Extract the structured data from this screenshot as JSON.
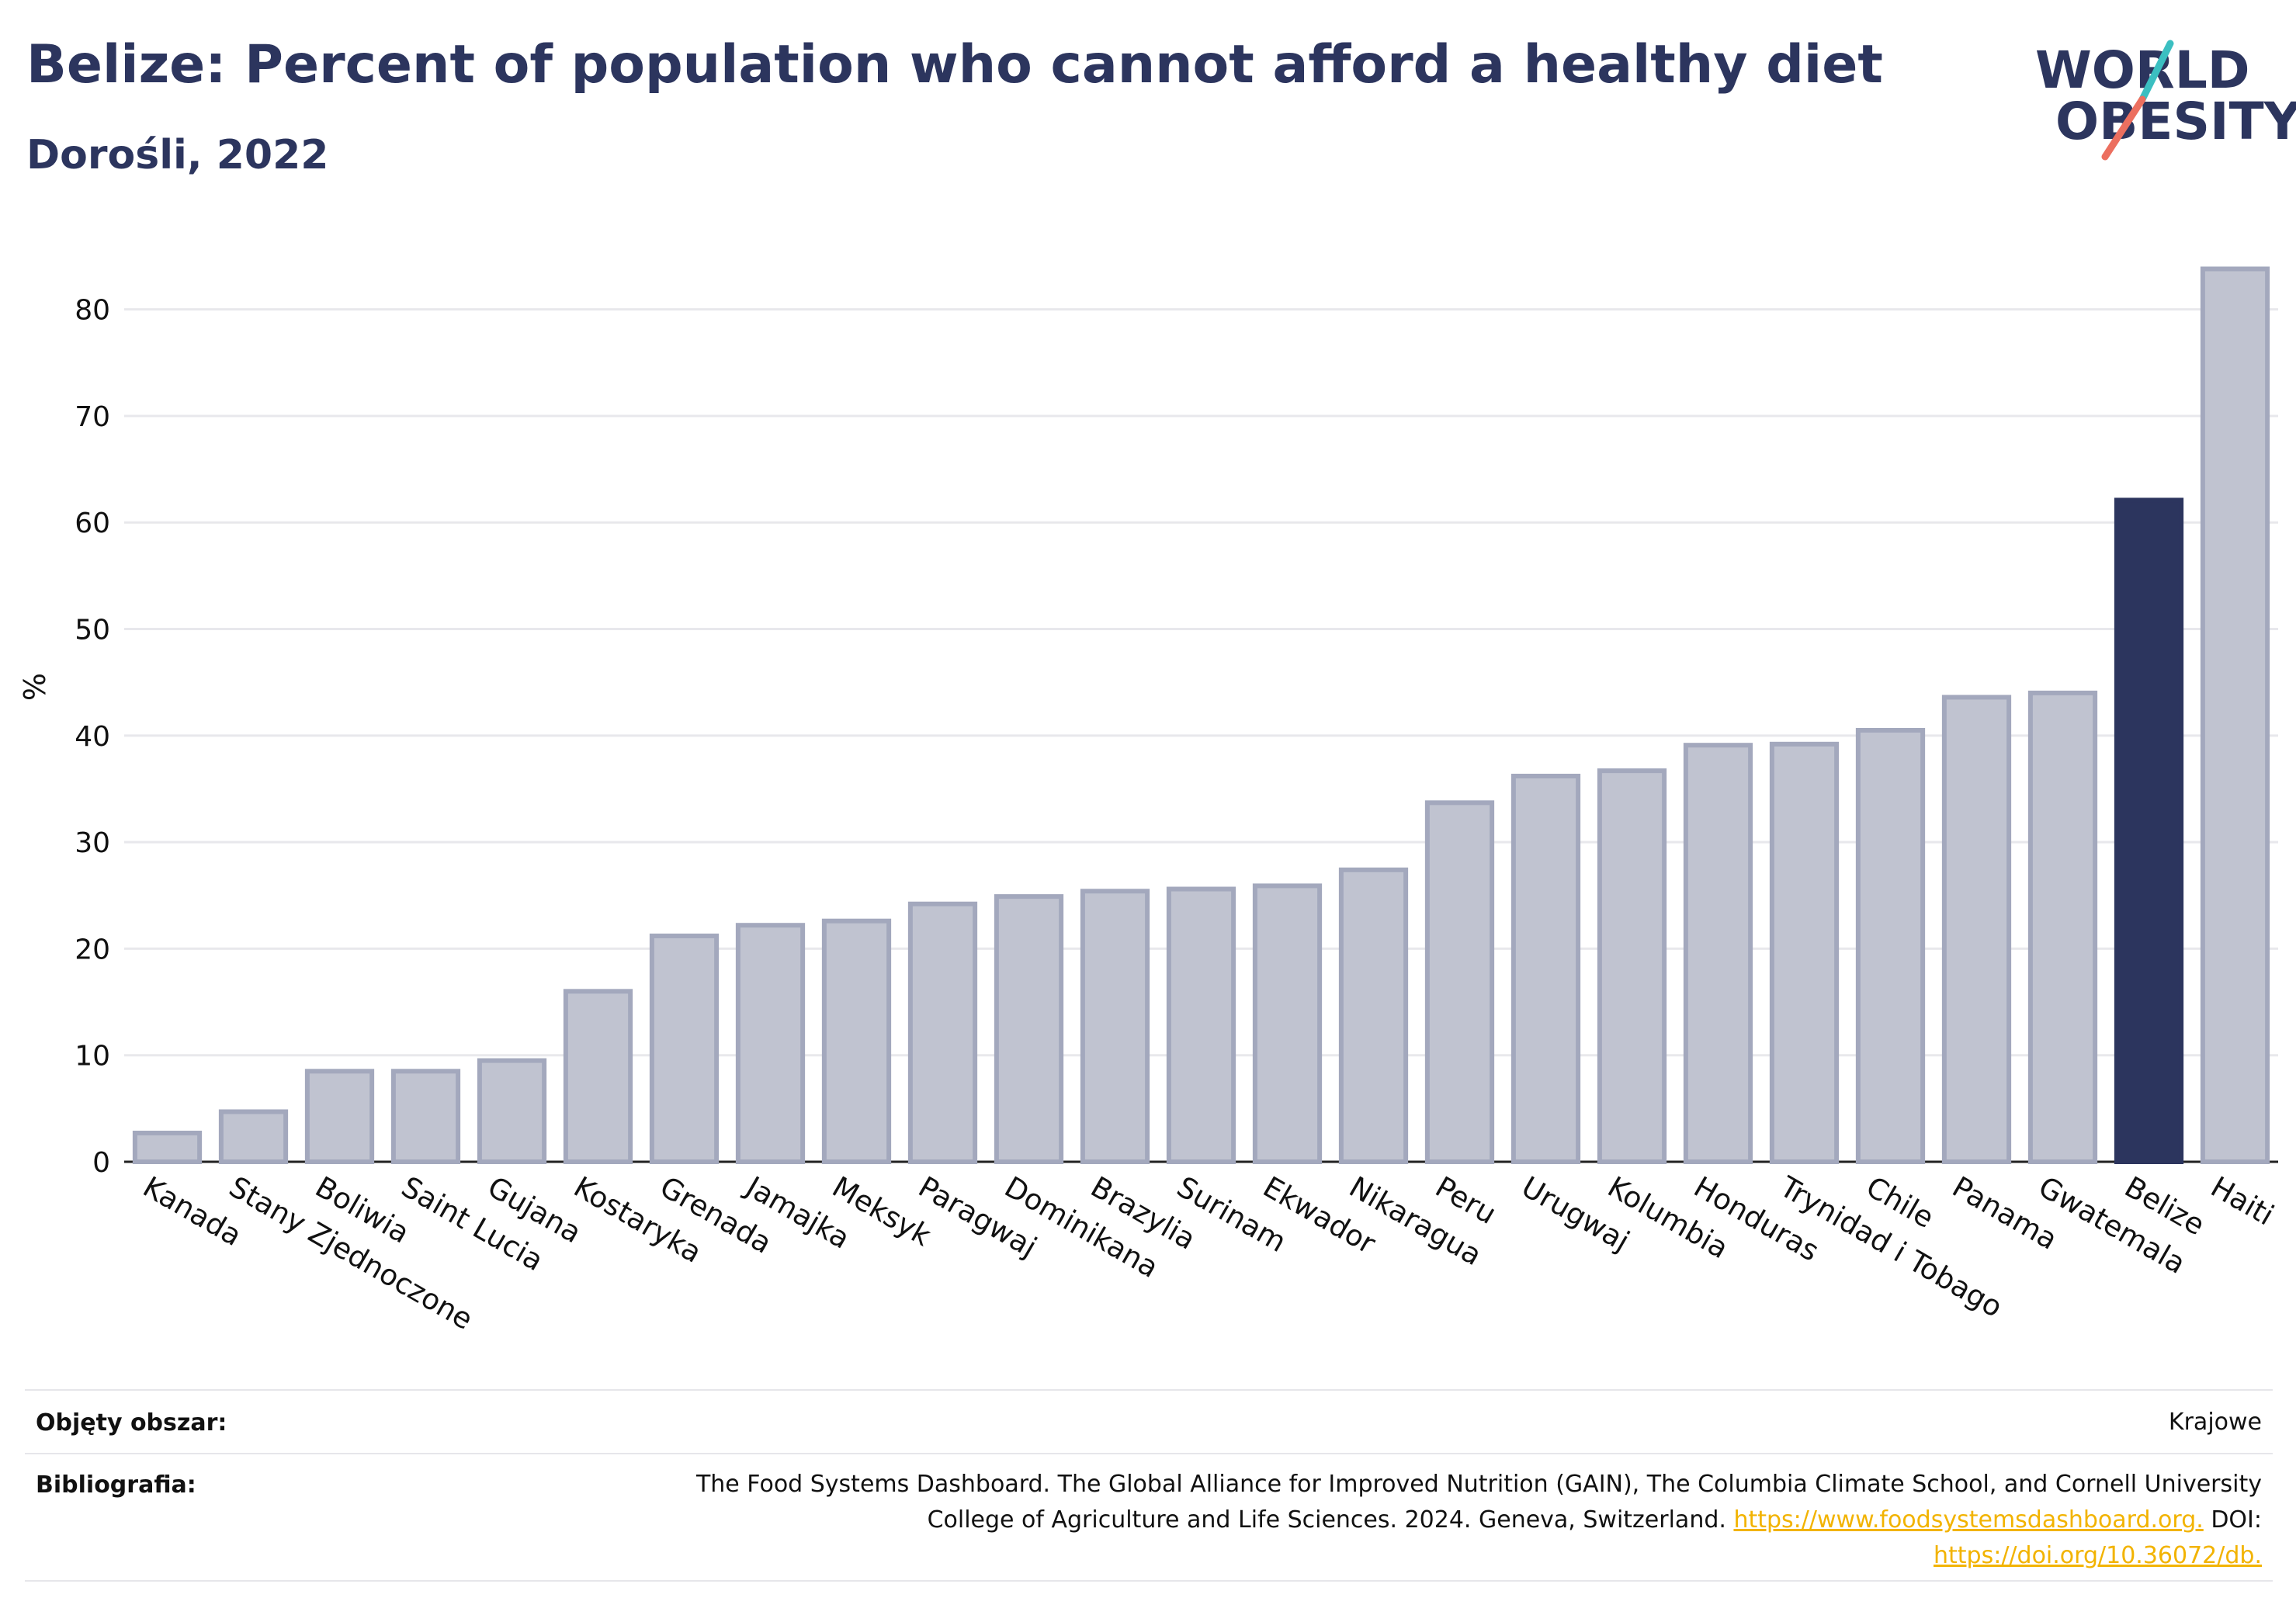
{
  "header": {
    "title": "Belize: Percent of population who cannot afford a healthy diet",
    "subtitle": "Dorośli, 2022"
  },
  "logo": {
    "line1": "WORLD",
    "line2": "OBESITY",
    "accent_teal": "#3bbfc1",
    "accent_coral": "#ec6f5f"
  },
  "chart_data": {
    "type": "bar",
    "ylabel": "%",
    "ylim": [
      0,
      85
    ],
    "yticks": [
      0,
      10,
      20,
      30,
      40,
      50,
      60,
      70,
      80
    ],
    "grid": true,
    "highlight": "Belize",
    "colors": {
      "bar": "#c0c3d0",
      "bar_edge": "#a3a8bd",
      "highlight": "#2c355e",
      "grid": "#e8e8ec"
    },
    "categories": [
      "Kanada",
      "Stany Zjednoczone",
      "Boliwia",
      "Saint Lucia",
      "Gujana",
      "Kostaryka",
      "Grenada",
      "Jamajka",
      "Meksyk",
      "Paragwaj",
      "Dominikana",
      "Brazylia",
      "Surinam",
      "Ekwador",
      "Nikaragua",
      "Peru",
      "Urugwaj",
      "Kolumbia",
      "Honduras",
      "Trynidad i Tobago",
      "Chile",
      "Panama",
      "Gwatemala",
      "Belize",
      "Haiti"
    ],
    "values": [
      2.7,
      4.7,
      8.5,
      8.5,
      9.5,
      16.0,
      21.2,
      22.2,
      22.6,
      24.2,
      24.9,
      25.4,
      25.6,
      25.9,
      27.4,
      33.7,
      36.2,
      36.7,
      39.1,
      39.2,
      40.5,
      43.6,
      44.0,
      62.1,
      83.8
    ]
  },
  "footer": {
    "coverage_label": "Objęty obszar:",
    "coverage_value": "Krajowe",
    "bibliography_label": "Bibliografia:",
    "bibliography_line1": "The Food Systems Dashboard. The Global Alliance for Improved Nutrition (GAIN), The Columbia Climate School, and Cornell University",
    "bibliography_line2": "College of Agriculture and Life Sciences. 2024. Geneva, Switzerland.",
    "bibliography_link1": "https://www.foodsystemsdashboard.org.",
    "bibliography_doi_label": "DOI:",
    "bibliography_link2": "https://doi.org/10.36072/db."
  }
}
